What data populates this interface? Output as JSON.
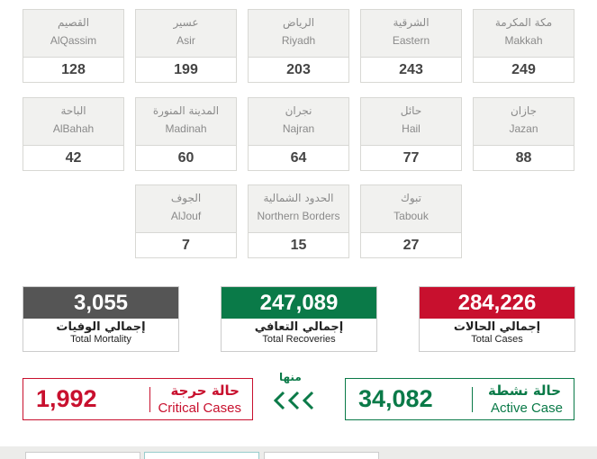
{
  "regions": [
    {
      "name_ar": "مكة المكرمة",
      "name_en": "Makkah",
      "cases": "249"
    },
    {
      "name_ar": "الشرقية",
      "name_en": "Eastern",
      "cases": "243"
    },
    {
      "name_ar": "الرياض",
      "name_en": "Riyadh",
      "cases": "203"
    },
    {
      "name_ar": "عسير",
      "name_en": "Asir",
      "cases": "199"
    },
    {
      "name_ar": "القصيم",
      "name_en": "AlQassim",
      "cases": "128"
    },
    {
      "name_ar": "جازان",
      "name_en": "Jazan",
      "cases": "88"
    },
    {
      "name_ar": "حائل",
      "name_en": "Hail",
      "cases": "77"
    },
    {
      "name_ar": "نجران",
      "name_en": "Najran",
      "cases": "64"
    },
    {
      "name_ar": "المدينة المنورة",
      "name_en": "Madinah",
      "cases": "60"
    },
    {
      "name_ar": "الباحة",
      "name_en": "AlBahah",
      "cases": "42"
    },
    {
      "name_ar": "تبوك",
      "name_en": "Tabouk",
      "cases": "27"
    },
    {
      "name_ar": "الحدود الشمالية",
      "name_en": "Northern Borders",
      "cases": "15"
    },
    {
      "name_ar": "الجوف",
      "name_en": "AlJouf",
      "cases": "7"
    }
  ],
  "totals": [
    {
      "value": "284,226",
      "label_ar": "إجمالي الحالات",
      "label_en": "Total Cases",
      "color": "#c8102e"
    },
    {
      "value": "247,089",
      "label_ar": "إجمالي التعافي",
      "label_en": "Total Recoveries",
      "color": "#0a7a48"
    },
    {
      "value": "3,055",
      "label_ar": "إجمالي الوفيات",
      "label_en": "Total Mortality",
      "color": "#555555"
    }
  ],
  "breakdown_label": "منها",
  "active": {
    "value": "34,082",
    "label_ar": "حالة نشطة",
    "label_en": "Active Case",
    "color": "#0a7a48"
  },
  "critical": {
    "value": "1,992",
    "label_ar": "حالة حرجة",
    "label_en": "Critical Cases",
    "color": "#c8102e"
  }
}
